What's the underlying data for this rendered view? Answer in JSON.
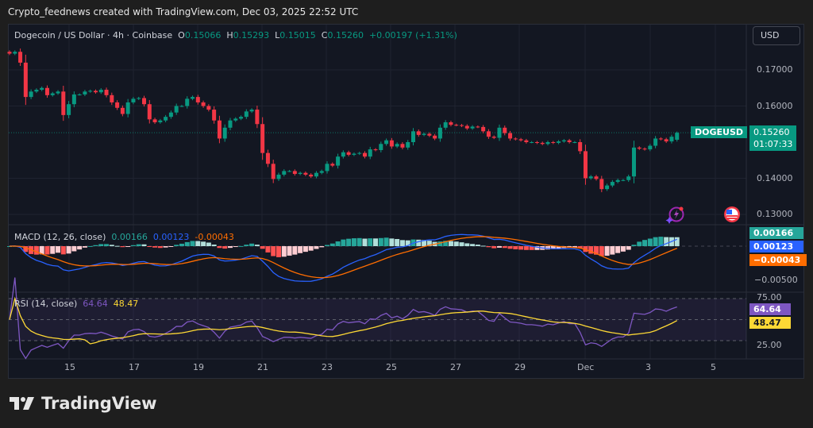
{
  "watermark_note": "Crypto_feednews created with TradingView.com, Dec 03, 2025 22:52 UTC",
  "header": {
    "symbol": "Dogecoin / US Dollar · 4h · Coinbase",
    "o_label": "O",
    "o": "0.15066",
    "h_label": "H",
    "h": "0.15293",
    "l_label": "L",
    "l": "0.15015",
    "c_label": "C",
    "c": "0.15260",
    "change": "+0.00197 (+1.31%)"
  },
  "currency_button": "USD",
  "price_tag": {
    "symbol": "DOGEUSD",
    "price": "0.15260",
    "countdown": "01:07:33"
  },
  "macd_legend": {
    "title": "MACD (12, 26, close)",
    "hist": "0.00166",
    "macd": "0.00123",
    "signal": "-0.00043"
  },
  "macd_tags": {
    "hist": "0.00166",
    "macd": "0.00123",
    "signal": "−0.00043"
  },
  "rsi_legend": {
    "title": "RSI (14, close)",
    "rsi": "64.64",
    "ma": "48.47"
  },
  "rsi_tags": {
    "rsi": "64.64",
    "ma": "48.47"
  },
  "brand": "TradingView",
  "icons": {
    "alert": "lightning-icon",
    "event": "us-flag-icon",
    "logo": "tradingview-logo-icon"
  },
  "colors": {
    "up": "#089981",
    "down": "#f23645",
    "macd": "#2962ff",
    "signal": "#ff6d00",
    "hist_up": "#26a69a",
    "hist_up_fade": "#b2dfdb",
    "hist_down": "#ff5252",
    "hist_down_fade": "#ffcdd2",
    "rsi": "#7e57c2",
    "rsi_ma": "#fdd835",
    "price_tag": "#089981"
  },
  "chart_data": {
    "type": "candlestick",
    "interval": "4h",
    "price_axis_ticks": [
      "0.17000",
      "0.16000",
      "0.14000",
      "0.13000"
    ],
    "macd_axis_ticks": [
      "-0.00500"
    ],
    "rsi_axis_ticks": [
      "75.00",
      "25.00"
    ],
    "x_tick_labels": [
      "15",
      "17",
      "19",
      "21",
      "23",
      "25",
      "27",
      "29",
      "Dec",
      "3",
      "5"
    ],
    "closes": [
      0.1745,
      0.175,
      0.172,
      0.1625,
      0.164,
      0.1645,
      0.165,
      0.163,
      0.1635,
      0.164,
      0.1575,
      0.1605,
      0.1632,
      0.1632,
      0.164,
      0.1642,
      0.1638,
      0.1645,
      0.163,
      0.161,
      0.1595,
      0.1578,
      0.161,
      0.162,
      0.1622,
      0.1605,
      0.1563,
      0.1555,
      0.156,
      0.157,
      0.1582,
      0.16,
      0.16,
      0.162,
      0.1625,
      0.161,
      0.16,
      0.159,
      0.156,
      0.151,
      0.154,
      0.156,
      0.1565,
      0.157,
      0.1585,
      0.159,
      0.155,
      0.147,
      0.144,
      0.1398,
      0.141,
      0.142,
      0.142,
      0.1412,
      0.1415,
      0.141,
      0.1405,
      0.1415,
      0.142,
      0.144,
      0.1435,
      0.146,
      0.1472,
      0.1465,
      0.1468,
      0.147,
      0.146,
      0.148,
      0.1478,
      0.1495,
      0.1505,
      0.1488,
      0.1495,
      0.1485,
      0.15,
      0.153,
      0.152,
      0.1523,
      0.1518,
      0.151,
      0.154,
      0.1555,
      0.1548,
      0.1547,
      0.1545,
      0.1538,
      0.1543,
      0.1542,
      0.153,
      0.1515,
      0.1512,
      0.154,
      0.1525,
      0.151,
      0.1508,
      0.1505,
      0.15,
      0.15,
      0.1498,
      0.1495,
      0.15,
      0.1498,
      0.1502,
      0.1505,
      0.15,
      0.15,
      0.1475,
      0.14,
      0.1405,
      0.1398,
      0.137,
      0.138,
      0.139,
      0.1395,
      0.1395,
      0.1405,
      0.1485,
      0.1482,
      0.148,
      0.149,
      0.151,
      0.1508,
      0.1502,
      0.1515,
      0.1526
    ],
    "last": {
      "open": 0.15066,
      "high": 0.15293,
      "low": 0.15015,
      "close": 0.1526
    },
    "price_range": [
      0.125,
      0.178
    ],
    "macd_params": [
      12,
      26
    ],
    "rsi_period": 14,
    "rsi_bands": [
      75,
      50,
      25
    ],
    "grid": true
  }
}
